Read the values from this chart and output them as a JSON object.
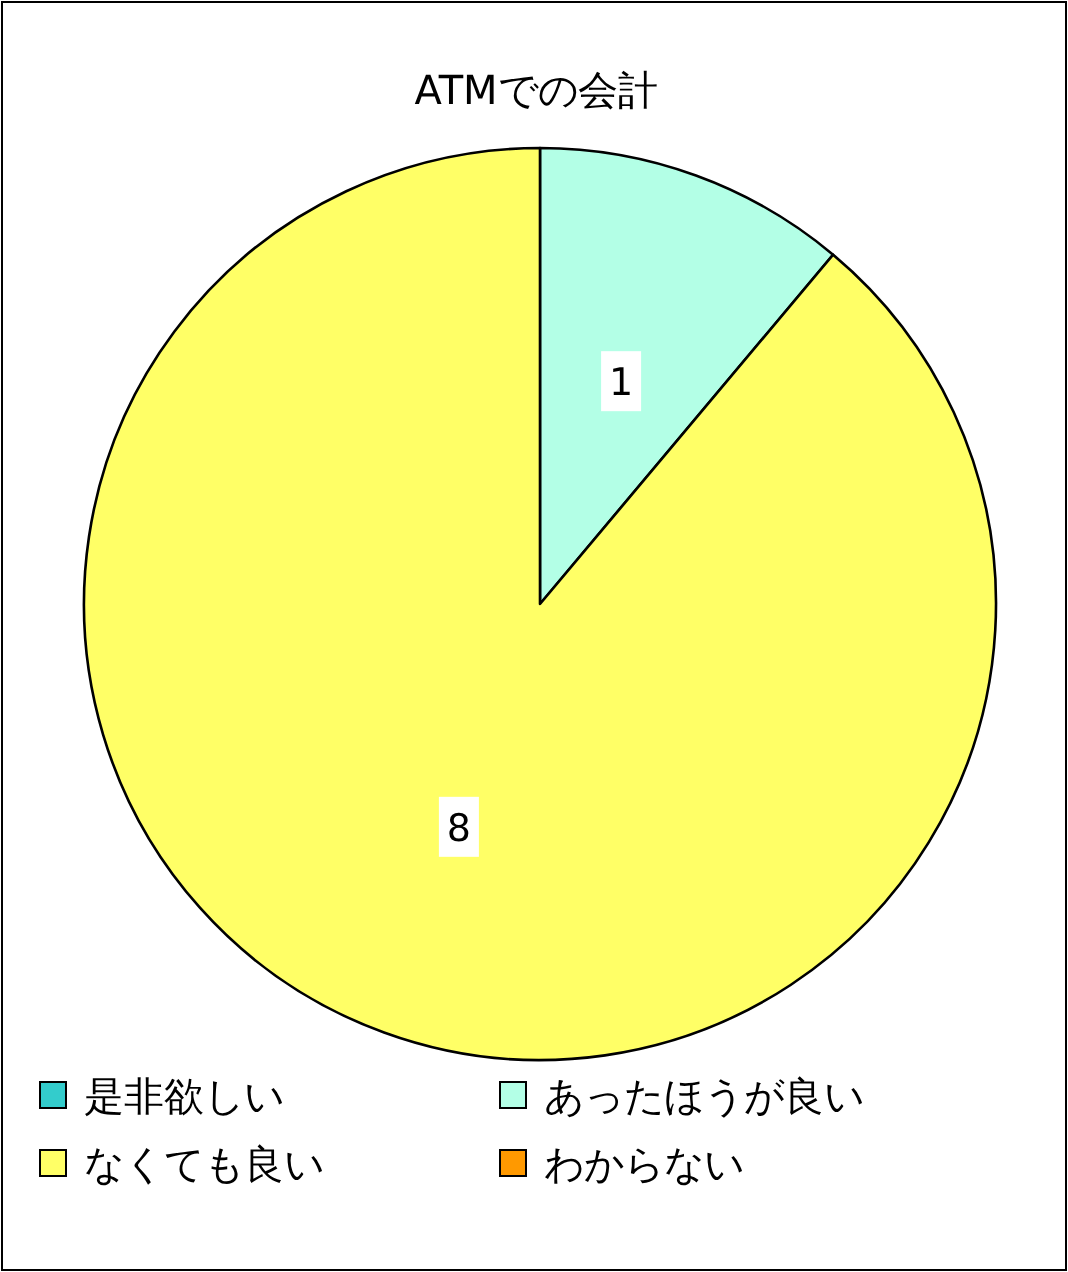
{
  "chart_data": {
    "type": "pie",
    "title": "ATMでの会計",
    "categories": [
      "是非欲しい",
      "あったほうが良い",
      "なくても良い",
      "わからない"
    ],
    "values": [
      0,
      1,
      8,
      0
    ],
    "value_labels": [
      null,
      "1",
      "8",
      null
    ],
    "colors": [
      "#33cccc",
      "#b3ffe6",
      "#ffff66",
      "#ff9900"
    ],
    "legend": "bottom"
  }
}
